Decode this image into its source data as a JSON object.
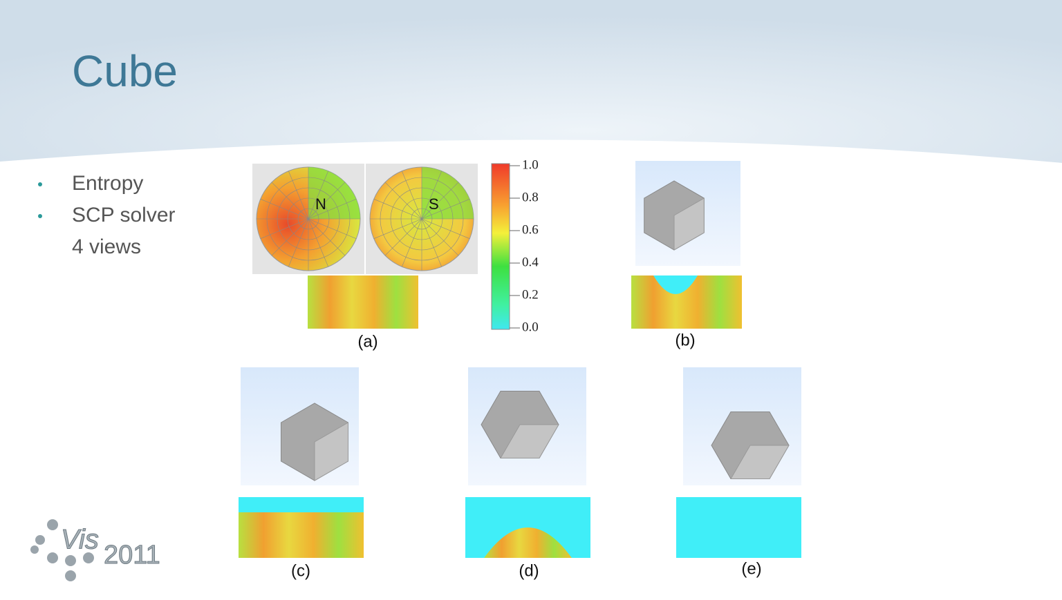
{
  "title": "Cube",
  "bullets": [
    "Entropy",
    "SCP solver"
  ],
  "sub_text": "4 views",
  "figure": {
    "hemispheres": [
      "N",
      "S"
    ],
    "colorbar_ticks": [
      "1.0",
      "0.8",
      "0.6",
      "0.4",
      "0.2",
      "0.0"
    ],
    "panels": [
      "(a)",
      "(b)",
      "(c)",
      "(d)",
      "(e)"
    ]
  },
  "logo": {
    "text": "Vis",
    "year": "2011"
  }
}
